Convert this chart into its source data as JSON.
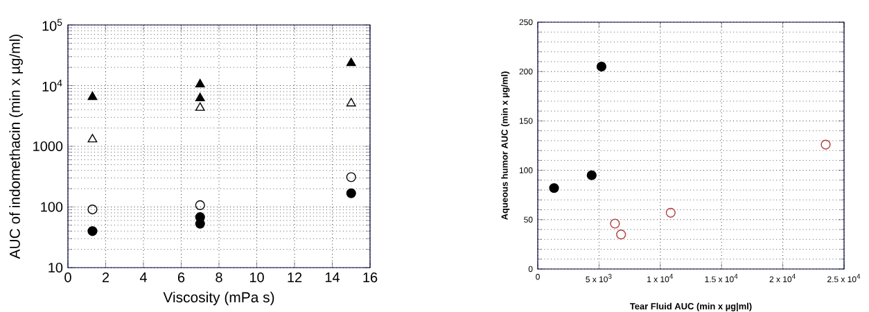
{
  "chart_data": [
    {
      "type": "scatter",
      "xlabel": "Viscosity (mPa s)",
      "ylabel": "AUC of indomethacin (min x µg/ml)",
      "log": "y",
      "grid": true,
      "xlim": [
        0,
        16
      ],
      "xticks": [
        0,
        2,
        4,
        6,
        8,
        10,
        12,
        14,
        16
      ],
      "ylim": [
        10,
        100000
      ],
      "yticks": [
        10,
        100,
        1000,
        {
          "value": 10000,
          "label": "10$^{4}$"
        },
        {
          "value": 100000,
          "label": "10$^{5}$"
        }
      ],
      "series": [
        {
          "color": "#000000",
          "marker": "triangle",
          "x": [
            1.3,
            7,
            7,
            15
          ],
          "values": [
            6500,
            10500,
            6200,
            23500
          ]
        },
        {
          "color": "#000000",
          "marker": "triangle",
          "x": [
            1.3,
            7,
            15
          ],
          "values": [
            1300,
            4300,
            5100
          ]
        },
        {
          "color": "#000000",
          "marker": "circle",
          "x": [
            1.3,
            7,
            15
          ],
          "values": [
            91,
            107,
            310
          ]
        },
        {
          "color": "#000000",
          "marker": "circle",
          "x": [
            1.3,
            7,
            7,
            15
          ],
          "values": [
            40,
            68,
            53,
            168
          ]
        }
      ]
    },
    {
      "type": "scatter",
      "xlabel": "Tear Fluid AUC (min x µg|ml)",
      "ylabel": "Aqueous humor AUC (min x µg/ml)",
      "grid": true,
      "xlim": [
        0,
        25000
      ],
      "xticks": [
        0,
        {
          "value": 5000,
          "label": "5 x 10$^{3}$"
        },
        {
          "value": 10000,
          "label": "1 x 10$^{4}$"
        },
        {
          "value": 15000,
          "label": "1.5 x 10$^{4}$"
        },
        {
          "value": 20000,
          "label": "2 x 10$^{4}$"
        },
        {
          "value": 25000,
          "label": "2.5 x 10$^{4}$"
        }
      ],
      "ylim": [
        0,
        250
      ],
      "yticks": [
        0,
        50,
        100,
        150,
        200,
        250
      ],
      "series": [
        {
          "color": "#000000",
          "marker": "circle",
          "x": [
            1330,
            4400,
            5200
          ],
          "values": [
            82,
            95,
            205
          ]
        },
        {
          "color": "#b03a3a",
          "marker": "circle",
          "x": [
            6300,
            6800,
            10850,
            23500
          ],
          "values": [
            46,
            35,
            57,
            126
          ]
        }
      ]
    }
  ]
}
